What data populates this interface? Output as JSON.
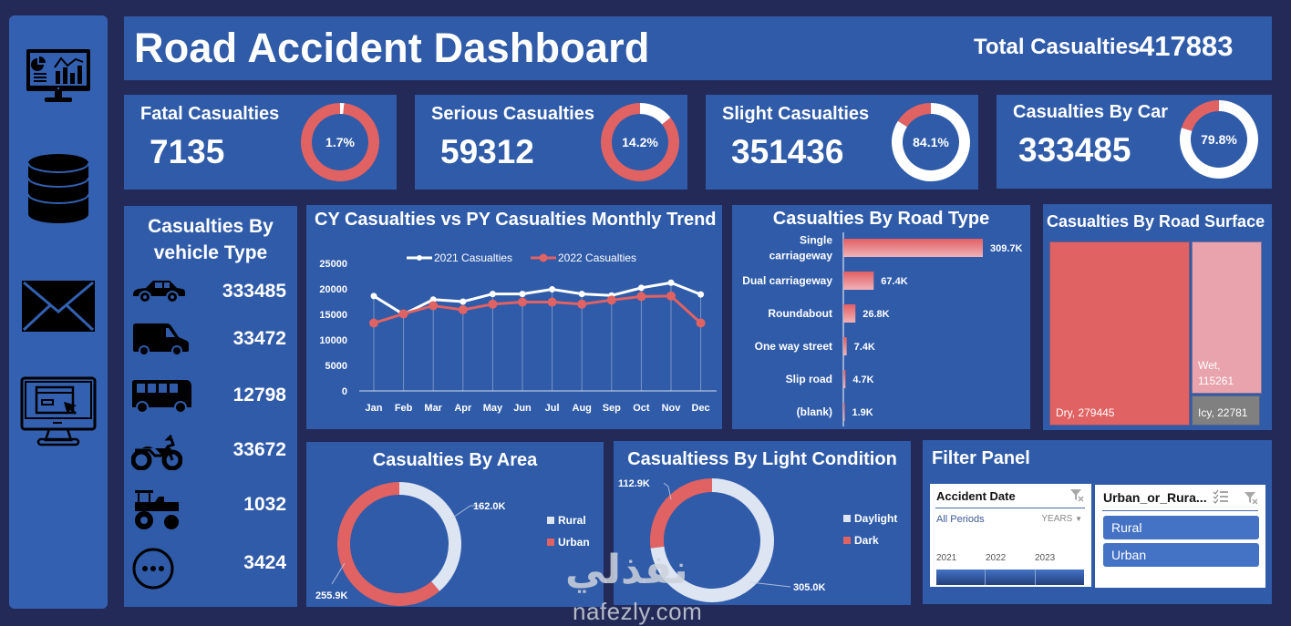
{
  "header": {
    "title": "Road Accident Dashboard",
    "total_label": "Total Casualties",
    "total_value": "417883"
  },
  "sidebar": {
    "items": [
      {
        "icon": "dashboard-monitor-icon"
      },
      {
        "icon": "database-icon"
      },
      {
        "icon": "mail-icon"
      },
      {
        "icon": "computer-click-icon"
      }
    ]
  },
  "kpis": [
    {
      "label": "Fatal Casualties",
      "value": "7135",
      "percent_label": "1.7%",
      "percent": 1.7
    },
    {
      "label": "Serious Casualties",
      "value": "59312",
      "percent_label": "14.2%",
      "percent": 14.2
    },
    {
      "label": "Slight Casualties",
      "value": "351436",
      "percent_label": "84.1%",
      "percent": 84.1
    },
    {
      "label": "Casualties  By Car",
      "value": "333485",
      "percent_label": "79.8%",
      "percent": 79.8
    }
  ],
  "vehicle_panel": {
    "title_line1": "Casualties By",
    "title_line2": "vehicle Type",
    "rows": [
      {
        "icon": "car-icon",
        "value": "333485"
      },
      {
        "icon": "van-icon",
        "value": "33472"
      },
      {
        "icon": "bus-icon",
        "value": "12798"
      },
      {
        "icon": "motorcycle-icon",
        "value": "33672"
      },
      {
        "icon": "tractor-icon",
        "value": "1032"
      },
      {
        "icon": "more-icon",
        "value": "3424"
      }
    ]
  },
  "colors": {
    "background": "#232a58",
    "panel": "#2f5ba9",
    "accent_red": "#e06262",
    "light": "#dde4f2",
    "wet_pink": "#e9a3ad",
    "icy_gray": "#808080"
  },
  "chart_data": [
    {
      "type": "line",
      "title": "CY Casualties vs PY Casualties Monthly Trend",
      "categories": [
        "Jan",
        "Feb",
        "Mar",
        "Apr",
        "May",
        "Jun",
        "Jul",
        "Aug",
        "Sep",
        "Oct",
        "Nov",
        "Dec"
      ],
      "series": [
        {
          "name": "2021 Casualties",
          "color": "#ffffff",
          "values": [
            18600,
            15000,
            17900,
            17500,
            19000,
            19000,
            19900,
            19000,
            18700,
            20200,
            21200,
            18900
          ]
        },
        {
          "name": "2022 Casualties",
          "color": "#e06262",
          "values": [
            13300,
            15100,
            16700,
            15900,
            17000,
            17400,
            17400,
            17000,
            17800,
            18500,
            18600,
            13300
          ]
        }
      ],
      "yticks": [
        0,
        5000,
        10000,
        15000,
        20000,
        25000
      ],
      "ylim": [
        0,
        25000
      ],
      "legend": "top",
      "grid": "vertical"
    },
    {
      "type": "bar",
      "orientation": "horizontal",
      "title": "Casualties By Road Type",
      "categories": [
        "Single carriageway",
        "Dual carriageway",
        "Roundabout",
        "One way street",
        "Slip road",
        "(blank)"
      ],
      "category_lines": [
        [
          "Single",
          "carriageway"
        ],
        [
          "Dual carriageway"
        ],
        [
          "Roundabout"
        ],
        [
          "One way street"
        ],
        [
          "Slip road"
        ],
        [
          "(blank)"
        ]
      ],
      "values": [
        309700,
        67400,
        26800,
        7400,
        4700,
        1900
      ],
      "labels": [
        "309.7K",
        "67.4K",
        "26.8K",
        "7.4K",
        "4.7K",
        "1.9K"
      ]
    },
    {
      "type": "treemap",
      "title": "Casualties By Road Surface",
      "items": [
        {
          "name": "Dry",
          "value": 279445,
          "label": "Dry, 279445",
          "color": "#e06262"
        },
        {
          "name": "Wet",
          "value": 115261,
          "label_line1": "Wet,",
          "label_line2": "115261",
          "color": "#e9a3ad"
        },
        {
          "name": "Icy",
          "value": 22781,
          "label": "Icy, 22781",
          "color": "#808080"
        }
      ]
    },
    {
      "type": "pie",
      "donut": true,
      "title": "Casualties By Area",
      "slices": [
        {
          "name": "Rural",
          "value": 162000,
          "label": "162.0K",
          "color": "#dde4f2"
        },
        {
          "name": "Urban",
          "value": 255900,
          "label": "255.9K",
          "color": "#e06262"
        }
      ],
      "legend": "right"
    },
    {
      "type": "pie",
      "donut": true,
      "title": "Casualtiess By Light Condition",
      "slices": [
        {
          "name": "Daylight",
          "value": 305000,
          "label": "305.0K",
          "color": "#dde4f2"
        },
        {
          "name": "Dark",
          "value": 112900,
          "label": "112.9K",
          "color": "#e06262"
        }
      ],
      "legend": "right"
    }
  ],
  "filter_panel": {
    "title": "Filter Panel",
    "date_slicer": {
      "title": "Accident Date",
      "period": "All Periods",
      "level": "YEARS",
      "years": [
        "2021",
        "2022",
        "2023"
      ]
    },
    "area_slicer": {
      "title": "Urban_or_Rura...",
      "options": [
        "Rural",
        "Urban"
      ]
    }
  },
  "watermark": {
    "arabic": "نفذلي",
    "latin": "nafezly.com"
  }
}
